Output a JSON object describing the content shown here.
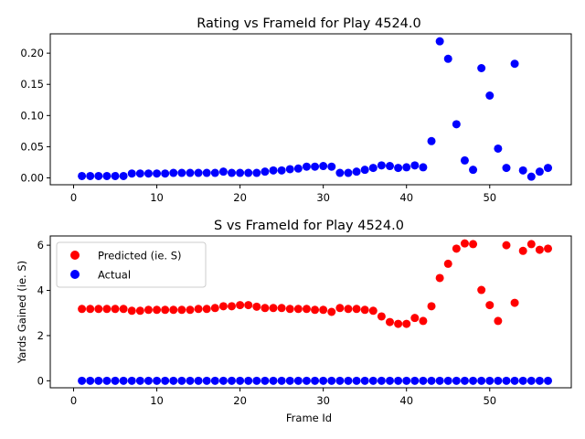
{
  "chart_data": [
    {
      "type": "scatter",
      "title": "Rating vs FrameId for Play 4524.0",
      "xlabel": "",
      "ylabel": "",
      "xlim": [
        -2.8,
        59.8
      ],
      "ylim": [
        -0.011,
        0.231
      ],
      "xticks": [
        0,
        10,
        20,
        30,
        40,
        50
      ],
      "yticks": [
        0.0,
        0.05,
        0.1,
        0.15,
        0.2
      ],
      "ytick_labels": [
        "0.00",
        "0.05",
        "0.10",
        "0.15",
        "0.20"
      ],
      "grid": false,
      "series": [
        {
          "name": "",
          "color": "#0000ff",
          "x": [
            1,
            2,
            3,
            4,
            5,
            6,
            7,
            8,
            9,
            10,
            11,
            12,
            13,
            14,
            15,
            16,
            17,
            18,
            19,
            20,
            21,
            22,
            23,
            24,
            25,
            26,
            27,
            28,
            29,
            30,
            31,
            32,
            33,
            34,
            35,
            36,
            37,
            38,
            39,
            40,
            41,
            42,
            43,
            44,
            45,
            46,
            47,
            48,
            49,
            50,
            51,
            52,
            53,
            54,
            55,
            56,
            57
          ],
          "y": [
            0.003,
            0.003,
            0.003,
            0.003,
            0.003,
            0.003,
            0.007,
            0.007,
            0.007,
            0.007,
            0.007,
            0.008,
            0.008,
            0.008,
            0.008,
            0.008,
            0.008,
            0.01,
            0.008,
            0.008,
            0.008,
            0.008,
            0.01,
            0.012,
            0.012,
            0.014,
            0.015,
            0.018,
            0.018,
            0.019,
            0.018,
            0.008,
            0.008,
            0.01,
            0.013,
            0.016,
            0.02,
            0.019,
            0.016,
            0.017,
            0.02,
            0.017,
            0.059,
            0.219,
            0.191,
            0.086,
            0.028,
            0.013,
            0.176,
            0.132,
            0.047,
            0.016,
            0.183,
            0.012,
            0.002,
            0.01,
            0.016
          ]
        }
      ]
    },
    {
      "type": "scatter",
      "title": "S vs FrameId for Play 4524.0",
      "xlabel": "Frame Id",
      "ylabel": "Yards Gained (ie. S)",
      "xlim": [
        -2.8,
        59.8
      ],
      "ylim": [
        -0.31,
        6.41
      ],
      "xticks": [
        0,
        10,
        20,
        30,
        40,
        50
      ],
      "yticks": [
        0,
        2,
        4,
        6
      ],
      "ytick_labels": [
        "0",
        "2",
        "4",
        "6"
      ],
      "grid": false,
      "legend": "upper-left",
      "series": [
        {
          "name": "Predicted (ie. S)",
          "color": "#ff0000",
          "x": [
            1,
            2,
            3,
            4,
            5,
            6,
            7,
            8,
            9,
            10,
            11,
            12,
            13,
            14,
            15,
            16,
            17,
            18,
            19,
            20,
            21,
            22,
            23,
            24,
            25,
            26,
            27,
            28,
            29,
            30,
            31,
            32,
            33,
            34,
            35,
            36,
            37,
            38,
            39,
            40,
            41,
            42,
            43,
            44,
            45,
            46,
            47,
            48,
            49,
            50,
            51,
            52,
            53,
            54,
            55,
            56,
            57
          ],
          "y": [
            3.18,
            3.18,
            3.18,
            3.18,
            3.18,
            3.18,
            3.1,
            3.1,
            3.14,
            3.14,
            3.14,
            3.14,
            3.14,
            3.14,
            3.18,
            3.18,
            3.22,
            3.3,
            3.3,
            3.35,
            3.35,
            3.28,
            3.22,
            3.22,
            3.22,
            3.18,
            3.18,
            3.18,
            3.14,
            3.14,
            3.05,
            3.22,
            3.18,
            3.18,
            3.14,
            3.1,
            2.85,
            2.6,
            2.52,
            2.52,
            2.78,
            2.65,
            3.3,
            4.55,
            5.18,
            5.85,
            6.08,
            6.05,
            4.02,
            3.35,
            2.65,
            6.0,
            3.45,
            5.75,
            6.05,
            5.8,
            5.85
          ]
        },
        {
          "name": "Actual",
          "color": "#0000ff",
          "x": [
            1,
            2,
            3,
            4,
            5,
            6,
            7,
            8,
            9,
            10,
            11,
            12,
            13,
            14,
            15,
            16,
            17,
            18,
            19,
            20,
            21,
            22,
            23,
            24,
            25,
            26,
            27,
            28,
            29,
            30,
            31,
            32,
            33,
            34,
            35,
            36,
            37,
            38,
            39,
            40,
            41,
            42,
            43,
            44,
            45,
            46,
            47,
            48,
            49,
            50,
            51,
            52,
            53,
            54,
            55,
            56,
            57
          ],
          "y": [
            0,
            0,
            0,
            0,
            0,
            0,
            0,
            0,
            0,
            0,
            0,
            0,
            0,
            0,
            0,
            0,
            0,
            0,
            0,
            0,
            0,
            0,
            0,
            0,
            0,
            0,
            0,
            0,
            0,
            0,
            0,
            0,
            0,
            0,
            0,
            0,
            0,
            0,
            0,
            0,
            0,
            0,
            0,
            0,
            0,
            0,
            0,
            0,
            0,
            0,
            0,
            0,
            0,
            0,
            0,
            0,
            0
          ]
        }
      ]
    }
  ]
}
